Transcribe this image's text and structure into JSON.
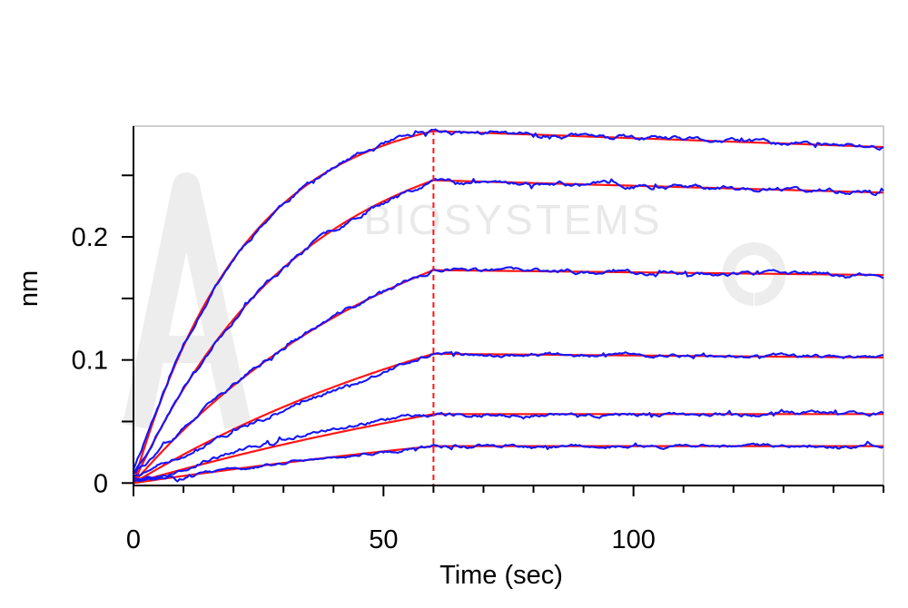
{
  "chart_data": {
    "type": "line",
    "title": "",
    "xlabel": "Time (sec)",
    "ylabel": "nm",
    "xlim": [
      0,
      150
    ],
    "ylim": [
      -0.002,
      0.29
    ],
    "x_ticks": [
      0,
      50,
      100
    ],
    "y_ticks": [
      0,
      0.1,
      0.2
    ],
    "x_minor_step": 10,
    "y_minor_step": 0.05,
    "grid": false,
    "legend": "none",
    "association_end": 60,
    "watermark": "BIOSYSTEMS",
    "colors": {
      "measured": "#1515ff",
      "fit": "#ff1414",
      "divider": "#ff1414",
      "axis": "#000000",
      "frame": "#b4b4b4"
    },
    "series": [
      {
        "plateau": 0.286,
        "kobs": 0.045,
        "end": 0.273,
        "noise": 0.0012,
        "seed": 11,
        "mstart": 0.012
      },
      {
        "plateau": 0.246,
        "kobs": 0.03,
        "end": 0.236,
        "noise": 0.0012,
        "seed": 23,
        "mstart": 0.008
      },
      {
        "plateau": 0.173,
        "kobs": 0.018,
        "end": 0.169,
        "noise": 0.0011,
        "seed": 37,
        "mstart": 0.012
      },
      {
        "plateau": 0.105,
        "kobs": 0.012,
        "end": 0.102,
        "noise": 0.001,
        "seed": 51,
        "mstart": 0.006,
        "moffset": -0.003
      },
      {
        "plateau": 0.056,
        "kobs": 0.008,
        "end": 0.056,
        "noise": 0.001,
        "seed": 67,
        "mstart": 0.004,
        "moffset": 0.004
      },
      {
        "plateau": 0.03,
        "kobs": 0.006,
        "end": 0.03,
        "noise": 0.0009,
        "seed": 83,
        "mstart": 0.002
      }
    ]
  }
}
